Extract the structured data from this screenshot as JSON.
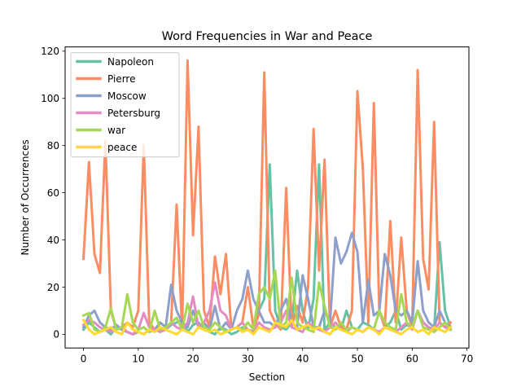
{
  "chart_data": {
    "type": "line",
    "title": "Word Frequencies in War and Peace",
    "xlabel": "Section",
    "ylabel": "Number of Occurrences",
    "xlim": [
      -3.35,
      70.35
    ],
    "ylim": [
      -5.8,
      121.8
    ],
    "xticks": [
      0,
      10,
      20,
      30,
      40,
      50,
      60,
      70
    ],
    "yticks": [
      0,
      20,
      40,
      60,
      80,
      100,
      120
    ],
    "legend_position": "upper-left",
    "grid": false,
    "series": [
      {
        "name": "Napoleon",
        "color": "#66c2a5",
        "values": [
          2,
          5,
          3,
          1,
          2,
          0,
          3,
          2,
          1,
          0,
          1,
          0,
          2,
          1,
          3,
          2,
          4,
          5,
          6,
          1,
          4,
          5,
          2,
          1,
          0,
          3,
          2,
          0,
          1,
          3,
          2,
          1,
          10,
          15,
          72,
          10,
          3,
          2,
          5,
          27,
          10,
          2,
          15,
          72,
          2,
          5,
          3,
          2,
          10,
          3,
          2,
          5,
          4,
          2,
          10,
          3,
          5,
          10,
          2,
          4,
          3,
          10,
          5,
          3,
          2,
          39,
          10,
          3
        ]
      },
      {
        "name": "Pierre",
        "color": "#fc8d62",
        "values": [
          32,
          73,
          34,
          26,
          82,
          10,
          2,
          3,
          5,
          3,
          10,
          80,
          5,
          2,
          3,
          2,
          5,
          55,
          2,
          116,
          42,
          88,
          10,
          3,
          33,
          17,
          34,
          2,
          3,
          5,
          20,
          3,
          8,
          111,
          10,
          5,
          2,
          62,
          3,
          12,
          5,
          20,
          87,
          27,
          74,
          3,
          10,
          3,
          2,
          10,
          103,
          70,
          5,
          98,
          10,
          3,
          48,
          5,
          41,
          10,
          3,
          112,
          32,
          19,
          90,
          5,
          3,
          5
        ]
      },
      {
        "name": "Moscow",
        "color": "#8da0cb",
        "values": [
          3,
          8,
          10,
          5,
          3,
          2,
          4,
          2,
          1,
          0,
          2,
          3,
          1,
          2,
          5,
          3,
          21,
          10,
          5,
          3,
          10,
          3,
          5,
          2,
          12,
          2,
          5,
          2,
          10,
          15,
          27,
          15,
          10,
          5,
          5,
          3,
          10,
          15,
          5,
          3,
          25,
          15,
          3,
          3,
          10,
          5,
          41,
          30,
          35,
          43,
          35,
          5,
          23,
          8,
          10,
          34,
          25,
          10,
          8,
          10,
          5,
          31,
          10,
          5,
          3,
          10,
          5,
          3
        ]
      },
      {
        "name": "Petersburg",
        "color": "#e78ac3",
        "values": [
          4,
          6,
          5,
          3,
          2,
          1,
          2,
          3,
          1,
          0,
          2,
          9,
          3,
          2,
          1,
          2,
          5,
          3,
          2,
          5,
          16,
          3,
          5,
          10,
          22,
          10,
          8,
          2,
          3,
          5,
          2,
          1,
          5,
          3,
          2,
          3,
          5,
          10,
          3,
          2,
          1,
          5,
          3,
          2,
          1,
          3,
          5,
          2,
          1,
          3,
          2,
          1,
          3,
          2,
          1,
          3,
          2,
          1,
          3,
          5,
          2,
          10,
          5,
          3,
          2,
          5,
          3,
          2
        ]
      },
      {
        "name": "war",
        "color": "#a6d854",
        "values": [
          8,
          9,
          2,
          1,
          3,
          11,
          2,
          3,
          17,
          5,
          2,
          3,
          1,
          10,
          2,
          3,
          5,
          7,
          2,
          13,
          5,
          10,
          3,
          2,
          5,
          3,
          1,
          2,
          3,
          2,
          5,
          2,
          17,
          20,
          15,
          27,
          3,
          5,
          24,
          5,
          3,
          2,
          1,
          22,
          12,
          3,
          2,
          5,
          2,
          3,
          2,
          1,
          3,
          2,
          10,
          5,
          3,
          2,
          17,
          5,
          3,
          10,
          3,
          2,
          1,
          3,
          5,
          2
        ]
      },
      {
        "name": "peace",
        "color": "#ffd92f",
        "values": [
          6,
          2,
          0,
          1,
          2,
          3,
          1,
          0,
          5,
          2,
          1,
          0,
          2,
          1,
          3,
          2,
          1,
          0,
          2,
          1,
          0,
          3,
          2,
          1,
          2,
          0,
          1,
          2,
          3,
          1,
          2,
          0,
          3,
          2,
          1,
          5,
          4,
          3,
          6,
          2,
          3,
          4,
          2,
          3,
          1,
          0,
          3,
          2,
          1,
          0,
          2,
          1,
          3,
          2,
          0,
          3,
          2,
          1,
          0,
          2,
          3,
          1,
          2,
          0,
          3,
          2,
          1,
          3
        ]
      }
    ]
  }
}
